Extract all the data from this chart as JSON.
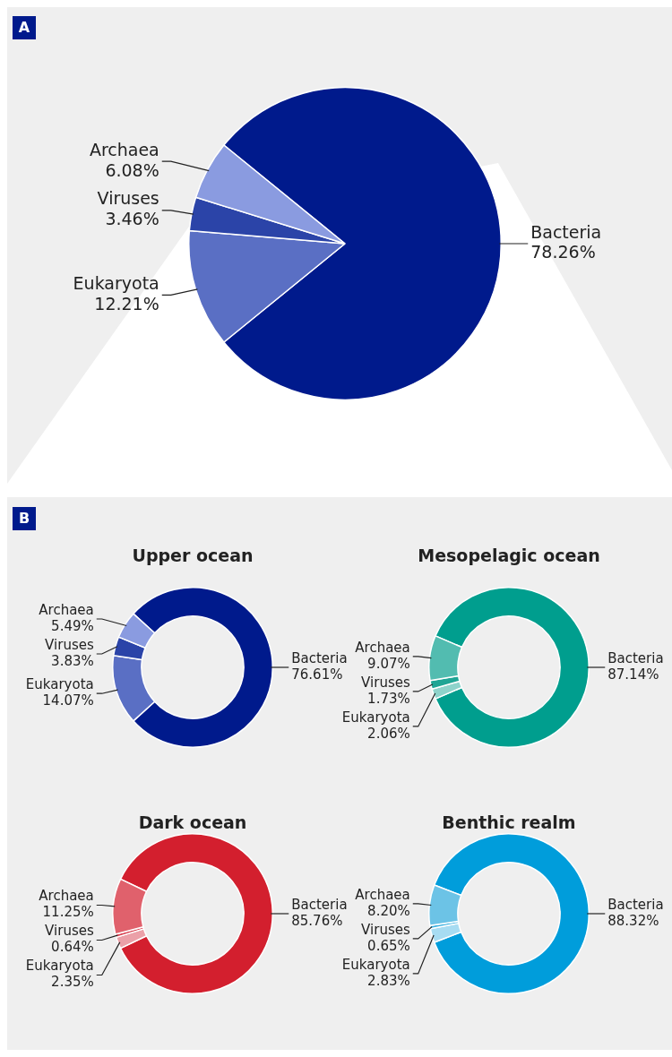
{
  "chart_data": [
    {
      "type": "pie",
      "annotations": [
        "A"
      ],
      "categories": [
        "Bacteria",
        "Eukaryota",
        "Viruses",
        "Archaea"
      ],
      "values": [
        78.26,
        12.21,
        3.46,
        6.08
      ],
      "value_labels": [
        "78.26%",
        "12.21%",
        "3.46%",
        "6.08%"
      ],
      "colors": [
        "#001a8c",
        "#5a6fc4",
        "#2b44a8",
        "#8a9be0"
      ]
    },
    {
      "type": "donut",
      "title": "Upper ocean",
      "annotations": [
        "B"
      ],
      "categories": [
        "Bacteria",
        "Eukaryota",
        "Viruses",
        "Archaea"
      ],
      "values": [
        76.61,
        14.07,
        3.83,
        5.49
      ],
      "value_labels": [
        "76.61%",
        "14.07%",
        "3.83%",
        "5.49%"
      ],
      "colors": [
        "#001a8c",
        "#5a6fc4",
        "#2b44a8",
        "#8a9be0"
      ]
    },
    {
      "type": "donut",
      "title": "Mesopelagic ocean",
      "categories": [
        "Bacteria",
        "Eukaryota",
        "Viruses",
        "Archaea"
      ],
      "values": [
        87.14,
        2.06,
        1.73,
        9.07
      ],
      "value_labels": [
        "87.14%",
        "2.06%",
        "1.73%",
        "9.07%"
      ],
      "colors": [
        "#009e8e",
        "#8ed3cb",
        "#1fa595",
        "#52bcb0"
      ]
    },
    {
      "type": "donut",
      "title": "Dark ocean",
      "categories": [
        "Bacteria",
        "Eukaryota",
        "Viruses",
        "Archaea"
      ],
      "values": [
        85.76,
        2.35,
        0.64,
        11.25
      ],
      "value_labels": [
        "85.76%",
        "2.35%",
        "0.64%",
        "11.25%"
      ],
      "colors": [
        "#d31f2e",
        "#eba0a8",
        "#d84050",
        "#e0616c"
      ]
    },
    {
      "type": "donut",
      "title": "Benthic realm",
      "categories": [
        "Bacteria",
        "Eukaryota",
        "Viruses",
        "Archaea"
      ],
      "values": [
        88.32,
        2.83,
        0.65,
        8.2
      ],
      "value_labels": [
        "88.32%",
        "2.83%",
        "0.65%",
        "8.20%"
      ],
      "colors": [
        "#009ddb",
        "#a7dcf2",
        "#3ab0e0",
        "#6cc3e6"
      ]
    }
  ]
}
